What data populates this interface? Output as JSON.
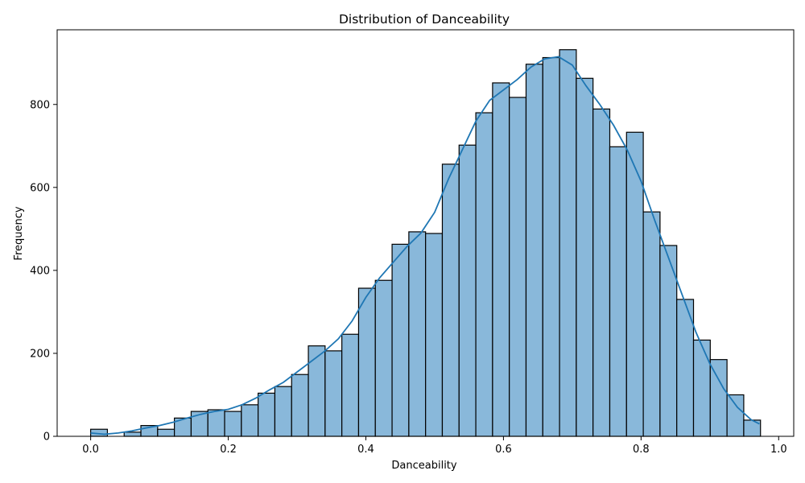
{
  "chart_data": {
    "type": "bar",
    "title": "Distribution of Danceability",
    "xlabel": "Danceability",
    "ylabel": "Frequency",
    "xlim": [
      -0.0487,
      1.0219
    ],
    "ylim": [
      0,
      980
    ],
    "xticks": [
      0.0,
      0.2,
      0.4,
      0.6,
      0.8,
      1.0
    ],
    "xtick_labels": [
      "0.0",
      "0.2",
      "0.4",
      "0.6",
      "0.8",
      "1.0"
    ],
    "yticks": [
      0,
      200,
      400,
      600,
      800
    ],
    "ytick_labels": [
      "0",
      "200",
      "400",
      "600",
      "800"
    ],
    "grid": false,
    "bin_start": 0.0,
    "bin_width": 0.02434,
    "values": [
      17,
      0,
      10,
      26,
      17,
      44,
      60,
      64,
      60,
      76,
      104,
      120,
      149,
      218,
      206,
      246,
      357,
      376,
      463,
      493,
      489,
      656,
      702,
      780,
      852,
      817,
      897,
      913,
      932,
      863,
      789,
      698,
      733,
      541,
      460,
      330,
      232,
      185,
      100,
      39
    ],
    "kde": {
      "x": [
        0.0,
        0.02,
        0.04,
        0.06,
        0.08,
        0.1,
        0.12,
        0.14,
        0.16,
        0.18,
        0.2,
        0.22,
        0.24,
        0.26,
        0.28,
        0.3,
        0.32,
        0.34,
        0.36,
        0.38,
        0.4,
        0.42,
        0.44,
        0.46,
        0.48,
        0.5,
        0.52,
        0.54,
        0.56,
        0.58,
        0.6,
        0.62,
        0.64,
        0.66,
        0.68,
        0.7,
        0.72,
        0.74,
        0.76,
        0.78,
        0.8,
        0.82,
        0.84,
        0.86,
        0.88,
        0.9,
        0.92,
        0.94,
        0.96,
        0.972
      ],
      "y": [
        8,
        5,
        8,
        13,
        20,
        26,
        34,
        44,
        53,
        60,
        65,
        76,
        92,
        112,
        130,
        155,
        180,
        205,
        235,
        278,
        335,
        382,
        420,
        458,
        490,
        540,
        620,
        690,
        760,
        810,
        835,
        860,
        890,
        910,
        915,
        895,
        845,
        800,
        750,
        690,
        615,
        520,
        430,
        340,
        250,
        175,
        115,
        70,
        40,
        30
      ]
    },
    "bar_color": "#89b8da",
    "bar_edge_color": "#000000",
    "kde_color": "#1f77b4"
  }
}
